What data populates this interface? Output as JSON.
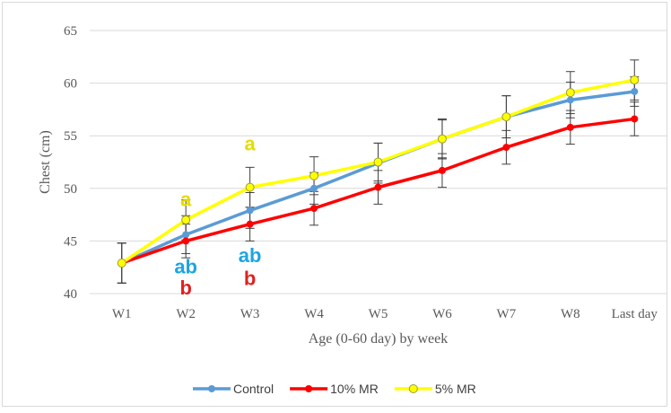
{
  "chart_data": {
    "type": "line",
    "categories": [
      "W1",
      "W2",
      "W3",
      "W4",
      "W5",
      "W6",
      "W7",
      "W8",
      "Last day"
    ],
    "xlabel": "Age (0-60  day) by week",
    "ylabel": "Chest (cm)",
    "ylim": [
      40,
      65
    ],
    "yticks": [
      40,
      45,
      50,
      55,
      60,
      65
    ],
    "grid": "horizontal",
    "legend_position": "bottom",
    "series": [
      {
        "name": "Control",
        "color": "#5b9bd5",
        "marker": "circle",
        "values": [
          42.9,
          45.6,
          47.9,
          50.0,
          52.4,
          54.7,
          56.8,
          58.4,
          59.2
        ],
        "errors": [
          1.9,
          1.8,
          1.7,
          1.5,
          1.9,
          1.8,
          2.0,
          1.7,
          1.4
        ]
      },
      {
        "name": "10% MR",
        "color": "#ff0000",
        "marker": "circle",
        "values": [
          42.9,
          45.0,
          46.6,
          48.1,
          50.1,
          51.7,
          53.9,
          55.8,
          56.6
        ],
        "errors": [
          1.9,
          1.6,
          1.6,
          1.6,
          1.6,
          1.6,
          1.6,
          1.6,
          1.6
        ]
      },
      {
        "name": "5% MR",
        "color": "#ffff00",
        "marker": "circle",
        "values": [
          42.9,
          47.0,
          50.1,
          51.2,
          52.5,
          54.7,
          56.8,
          59.1,
          60.3
        ],
        "errors": [
          1.9,
          1.9,
          1.9,
          1.8,
          1.8,
          1.9,
          2.0,
          2.0,
          1.9
        ]
      }
    ],
    "annotations": [
      {
        "text": "a",
        "category": "W2",
        "y": 48.3,
        "color": "#e5dc00"
      },
      {
        "text": "ab",
        "category": "W2",
        "y": 41.9,
        "color": "#1ea4e2"
      },
      {
        "text": "b",
        "category": "W2",
        "y": 39.9,
        "color": "#e02020"
      },
      {
        "text": "a",
        "category": "W3",
        "y": 53.6,
        "color": "#e5dc00"
      },
      {
        "text": "ab",
        "category": "W3",
        "y": 43.0,
        "color": "#1ea4e2"
      },
      {
        "text": "b",
        "category": "W3",
        "y": 40.8,
        "color": "#e02020"
      }
    ]
  }
}
